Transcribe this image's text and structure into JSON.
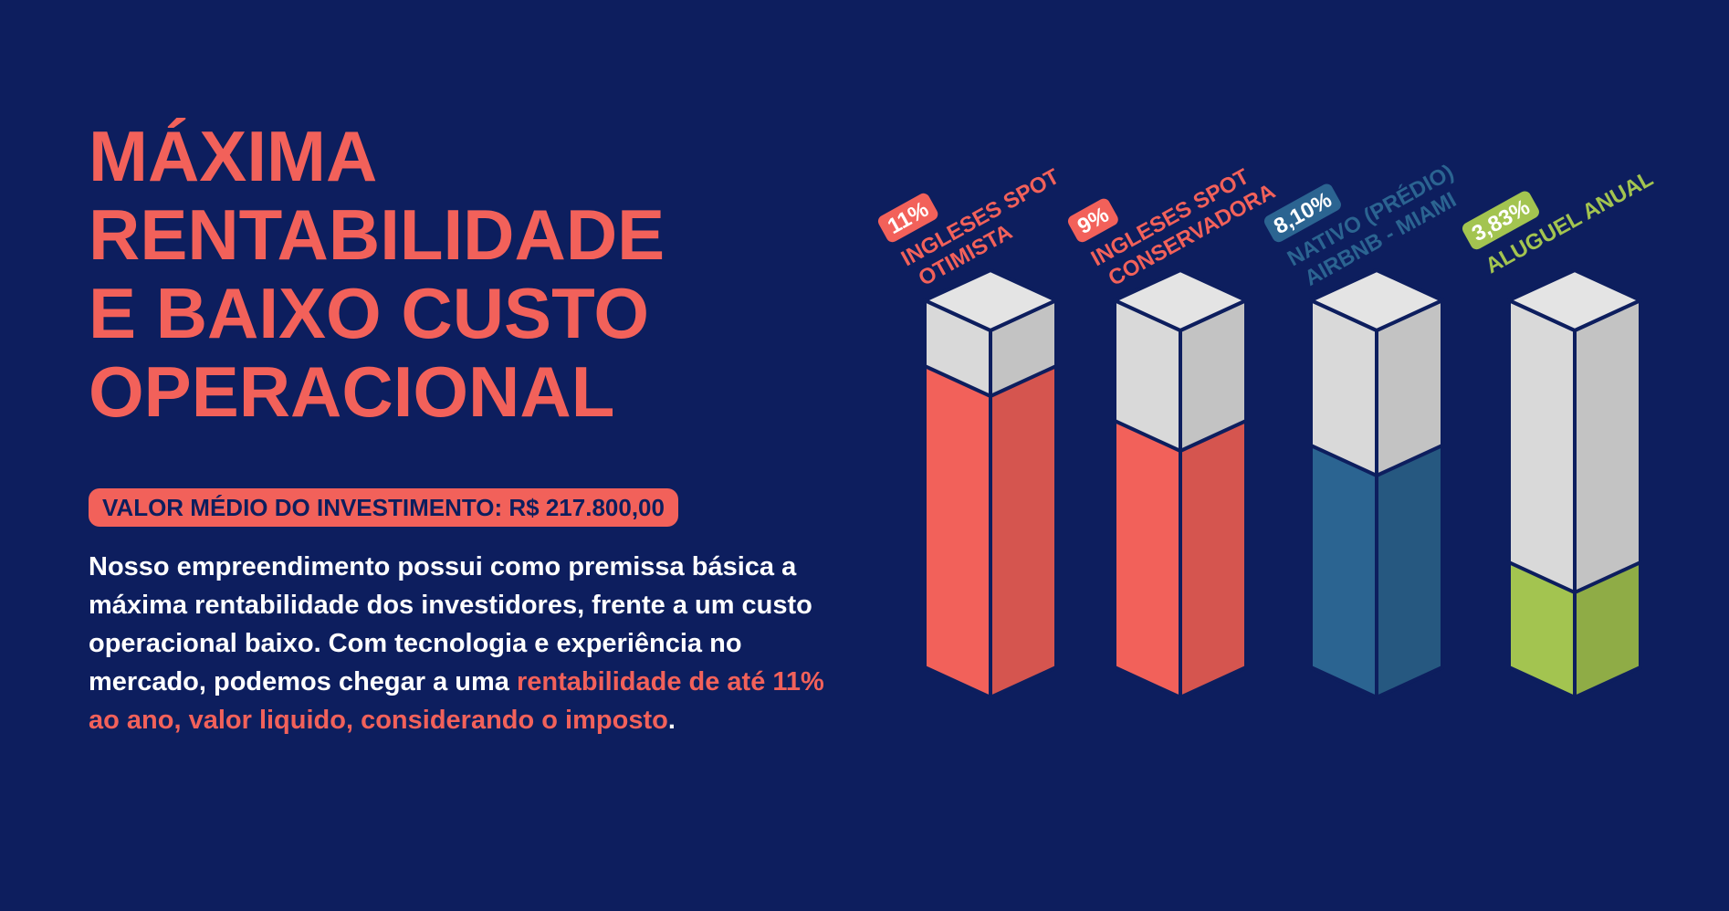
{
  "title": [
    "MÁXIMA",
    "RENTABILIDADE",
    "E BAIXO CUSTO",
    "OPERACIONAL"
  ],
  "badge": "VALOR MÉDIO DO INVESTIMENTO: R$ 217.800,00",
  "paragraph": [
    "Nosso empreendimento possui como premissa básica a máxima rentabilidade dos investidores, frente a um custo operacional baixo. Com tecnologia e experiência no mercado, podemos chegar a uma ",
    "rentabilidade de até 11% ao ano, valor liquido, considerando o imposto",
    "."
  ],
  "chart_data": {
    "type": "bar3d",
    "categories": [
      "INGLESES SPOT OTIMISTA",
      "INGLESES SPOT CONSERVADORA",
      "NATIVO (PRÉDIO) AIRBNB - MIAMI",
      "ALUGUEL ANUAL"
    ],
    "values": [
      11,
      9,
      8.1,
      3.83
    ],
    "value_labels": [
      "11%",
      "9%",
      "8,10%",
      "3,83%"
    ],
    "colors": [
      "#f2615a",
      "#f2615a",
      "#2b6491",
      "#a3c450"
    ]
  }
}
